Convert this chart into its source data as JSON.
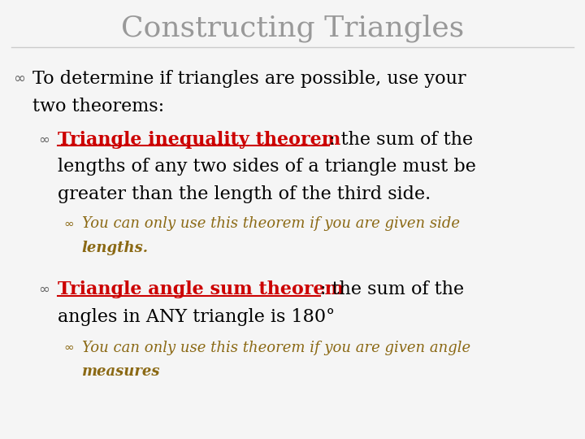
{
  "title": "Constructing Triangles",
  "title_color": "#999999",
  "title_fontsize": 26,
  "bg_color": "#f5f5f5",
  "border_color": "#bbbbbb",
  "text_color": "#000000",
  "red_color": "#cc0000",
  "olive_color": "#8B6914",
  "bullet_color": "#666666",
  "line1a": "To determine if triangles are possible, use your",
  "line1b": "two theorems:",
  "theorem1_underlined": "Triangle inequality theorem",
  "theorem1_rest": ": the sum of the",
  "theorem1_line2": "lengths of any two sides of a triangle must be",
  "theorem1_line3": "greater than the length of the third side.",
  "italic1_line1": "You can only use this theorem if you are given side",
  "italic1_line2": "lengths.",
  "theorem2_underlined": "Triangle angle sum theorem",
  "theorem2_rest": ": the sum of the",
  "theorem2_line2": "angles in ANY triangle is 180°",
  "italic2_line1": "You can only use this theorem if you are given angle",
  "italic2_line2": "measures",
  "main_fontsize": 16,
  "italic_fontsize": 13
}
